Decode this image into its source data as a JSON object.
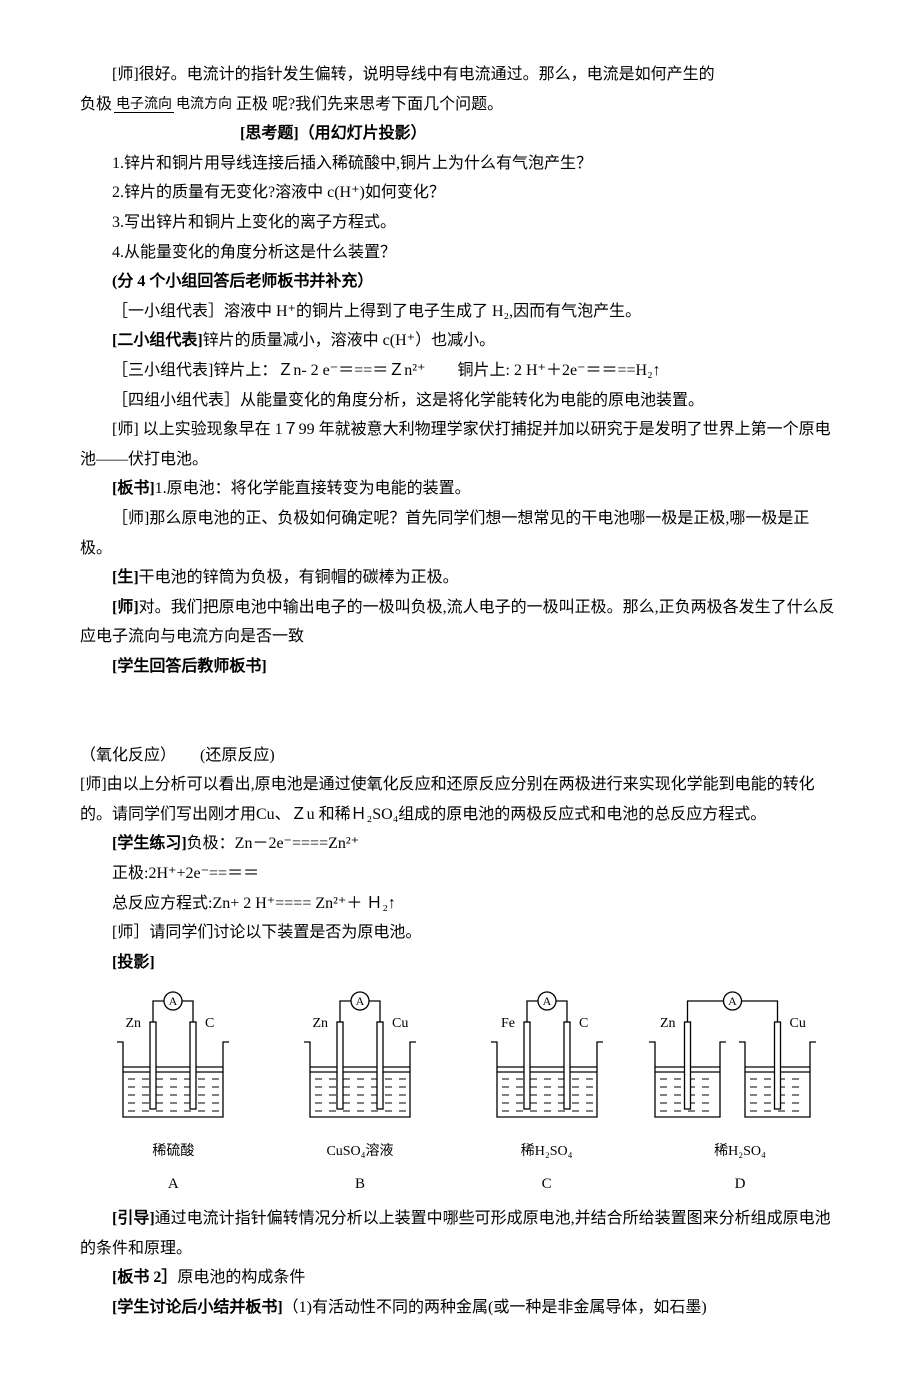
{
  "para1_a": "[师]很好。电流计的指针发生偏转，说明导线中有电流通过。那么，电流是如何产生的",
  "frac_top": "电子流向",
  "frac_bot": "电流方向",
  "para1_b_prefix": "负极",
  "para1_b_suffix": "正极",
  "para1_b_tail": " 呢?我们先来思考下面几个问题。",
  "para2": "[思考题]（用幻灯片投影）",
  "q1": "1.锌片和铜片用导线连接后插入稀硫酸中,铜片上为什么有气泡产生？",
  "q2": "2.锌片的质量有无变化?溶液中 c(H⁺)如何变化？",
  "q3": "3.写出锌片和铜片上变化的离子方程式。",
  "q4": "4.从能量变化的角度分析这是什么装置？",
  "group_title": "(分 4 个小组回答后老师板书并补充）",
  "g1": "［一小组代表］溶液中 H⁺的铜片上得到了电子生成了 H₂,因而有气泡产生。",
  "g2": "[二小组代表]锌片的质量减小，溶液中 c(H⁺）也减小。",
  "g3": "［三小组代表]锌片上：Ｚn- 2 e⁻＝==＝Ｚn²⁺　　铜片上: 2 H⁺＋2e⁻＝＝==H₂↑",
  "g4": "［四组小组代表］从能量变化的角度分析，这是将化学能转化为电能的原电池装置。",
  "teacher_history": "[师] 以上实验现象早在 1７99 年就被意大利物理学家伏打捕捉并加以研究于是发明了世界上第一个原电池——伏打电池。",
  "board1_label": "[板书]",
  "board1_text": "1.原电池：将化学能直接转变为电能的装置。",
  "teacher_pole": "［师]那么原电池的正、负极如何确定呢？首先同学们想一想常见的干电池哪一极是正极,哪一极是正极。",
  "student_pole": "[生]干电池的锌筒为负极，有铜帽的碳棒为正极。",
  "teacher_flow": "[师]对。我们把原电池中输出电子的一极叫负极,流人电子的一极叫正极。那么,正负两极各发生了什么反应电子流向与电流方向是否一致",
  "student_board": "[学生回答后教师板书]",
  "redox": "（氧化反应）　　(还原反应)",
  "teacher_analysis": "[师]由以上分析可以看出,原电池是通过使氧化反应和还原反应分别在两极进行来实现化学能到电能的转化的。请同学们写出刚才用Cu、Ｚu 和稀Ｈ₂SO₄组成的原电池的两极反应式和电池的总反应方程式。",
  "ex_label": "[学生练习]",
  "ex_neg": "负极：Zn－2e⁻====Zn²⁺",
  "ex_pos": "正极:2H⁺+2e⁻==＝＝",
  "ex_total": "总反应方程式:Zn+ 2 H⁺==== Zn²⁺＋ Ｈ₂↑",
  "teacher_discuss": "[师］请同学们讨论以下装置是否为原电池。",
  "proj": "[投影]",
  "diagrams": [
    {
      "left": "Zn",
      "right": "C",
      "sol": "稀硫酸",
      "letter": "A",
      "cups": 1
    },
    {
      "left": "Zn",
      "right": "Cu",
      "sol": "CuSO₄溶液",
      "letter": "B",
      "cups": 1
    },
    {
      "left": "Fe",
      "right": "C",
      "sol": "稀H₂SO₄",
      "letter": "C",
      "cups": 1
    },
    {
      "left": "Zn",
      "right": "Cu",
      "sol": "稀H₂SO₄",
      "letter": "D",
      "cups": 2
    }
  ],
  "guide_label": "[引导]",
  "guide_text": "通过电流计指针偏转情况分析以上装置中哪些可形成原电池,并结合所给装置图来分析组成原电池的条件和原理。",
  "board2_label": "[板书 2］",
  "board2_text": "原电池的构成条件",
  "discuss_label": "[学生讨论后小结并板书]",
  "discuss_text": "（1)有活动性不同的两种金属(或一种是非金属导体，如石墨)",
  "svg": {
    "stroke": "#000000",
    "stroke_width": 1.3,
    "width": 150,
    "height": 150,
    "width_d": 200,
    "font_size": 14,
    "font_family": "SimSun, serif"
  }
}
